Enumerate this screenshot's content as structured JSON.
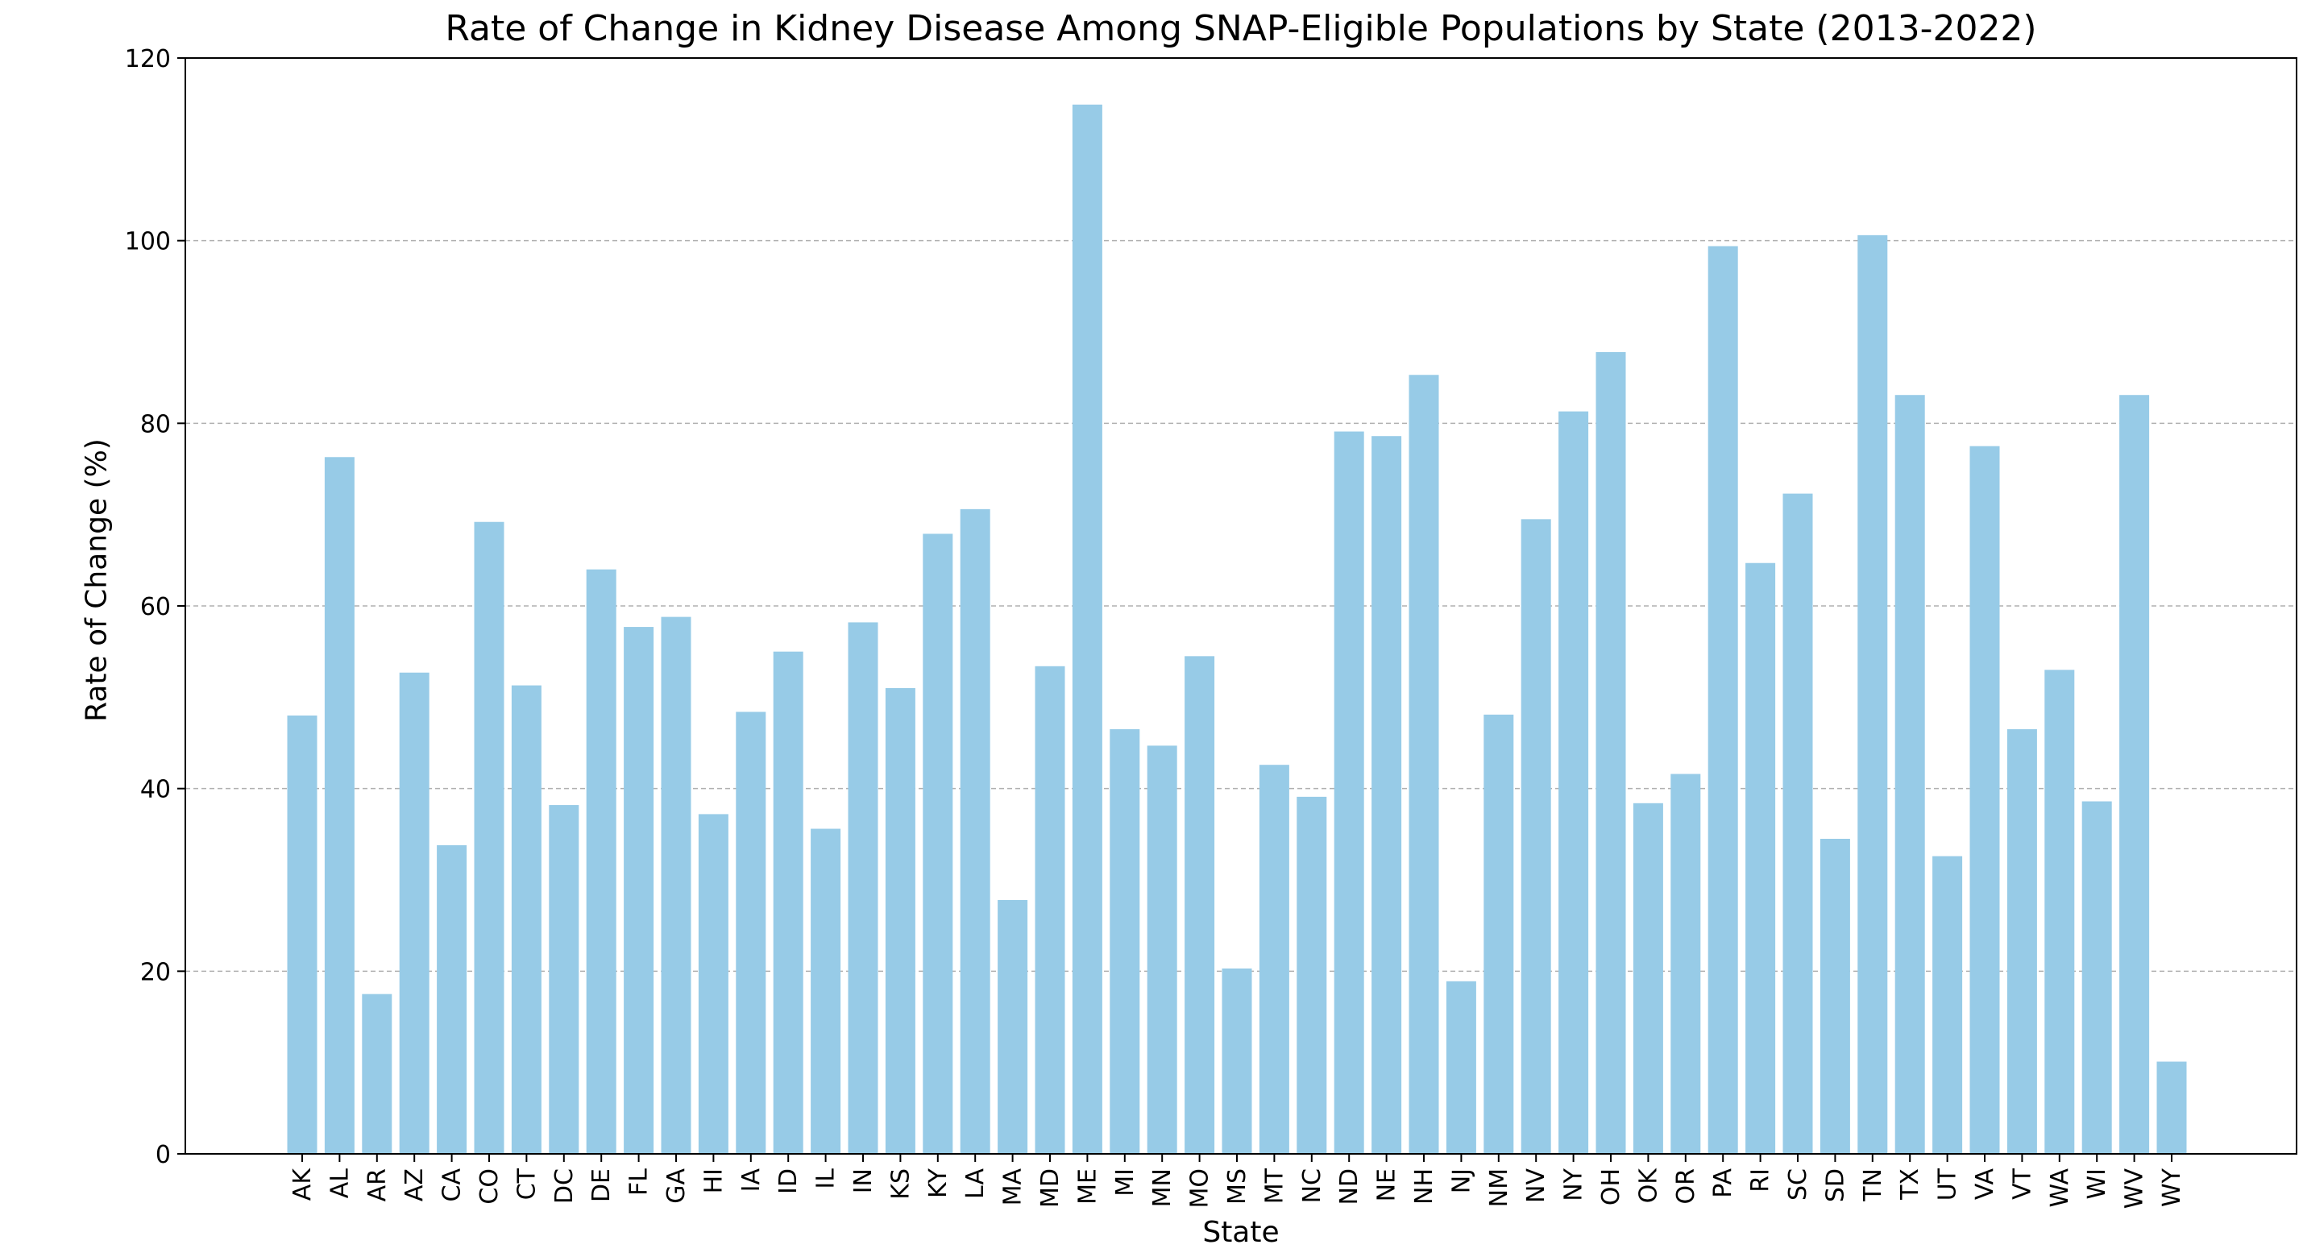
{
  "chart_data": {
    "type": "bar",
    "title": "Rate of Change in Kidney Disease Among SNAP-Eligible Populations by State (2013-2022)",
    "xlabel": "State",
    "ylabel": "Rate of Change (%)",
    "ylim": [
      0,
      120
    ],
    "yticks": [
      0,
      20,
      40,
      60,
      80,
      100,
      120
    ],
    "grid": "y-dashed",
    "bar_color": "#97cbe7",
    "categories": [
      "AK",
      "AL",
      "AR",
      "AZ",
      "CA",
      "CO",
      "CT",
      "DC",
      "DE",
      "FL",
      "GA",
      "HI",
      "IA",
      "ID",
      "IL",
      "IN",
      "KS",
      "KY",
      "LA",
      "MA",
      "MD",
      "ME",
      "MI",
      "MN",
      "MO",
      "MS",
      "MT",
      "NC",
      "ND",
      "NE",
      "NH",
      "NJ",
      "NM",
      "NV",
      "NY",
      "OH",
      "OK",
      "OR",
      "PA",
      "RI",
      "SC",
      "SD",
      "TN",
      "TX",
      "UT",
      "VA",
      "VT",
      "WA",
      "WI",
      "WV",
      "WY"
    ],
    "values": [
      48.0,
      76.3,
      17.5,
      52.7,
      33.8,
      69.2,
      51.3,
      38.2,
      64.0,
      57.7,
      58.8,
      37.2,
      48.4,
      55.0,
      35.6,
      58.2,
      51.0,
      67.9,
      70.6,
      27.8,
      53.4,
      114.9,
      46.5,
      44.7,
      54.5,
      20.3,
      42.6,
      39.1,
      79.1,
      78.6,
      85.3,
      18.9,
      48.1,
      69.5,
      81.3,
      87.8,
      38.4,
      41.6,
      99.4,
      64.7,
      72.3,
      34.5,
      100.6,
      83.1,
      32.6,
      77.5,
      46.5,
      53.0,
      38.6,
      83.1,
      10.1
    ]
  }
}
